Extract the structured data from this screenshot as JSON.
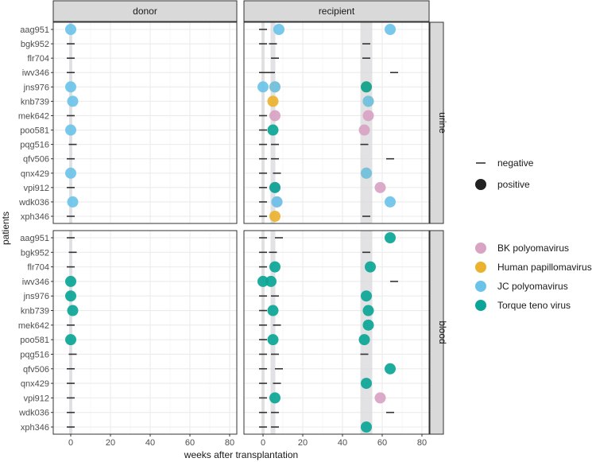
{
  "chart_data": {
    "type": "scatter",
    "xlabel": "weeks after transplantation",
    "ylabel": "patients",
    "xlim": [
      -9,
      84
    ],
    "xticks": [
      0,
      20,
      40,
      60,
      80
    ],
    "col_strips": [
      "donor",
      "recipient"
    ],
    "row_strips": [
      "urine",
      "blood"
    ],
    "patients": [
      "aag951",
      "bgk952",
      "flr704",
      "iwv346",
      "jns976",
      "knb739",
      "mek642",
      "poo581",
      "pqg516",
      "qfv506",
      "qnx429",
      "vpi912",
      "wdk036",
      "xph346"
    ],
    "shaded_bands": {
      "donor": [
        [
          -0.8,
          0.8
        ]
      ],
      "recipient": [
        [
          -0.8,
          0.8
        ],
        [
          3.8,
          6.2
        ],
        [
          49,
          55
        ]
      ]
    },
    "legend_status": {
      "title": "",
      "entries": [
        "negative",
        "positive"
      ]
    },
    "legend_virus": {
      "entries": [
        "BK polyomavirus",
        "Human papillomavirus",
        "JC polyomavirus",
        "Torque teno virus"
      ],
      "colors": [
        "#d9a3c4",
        "#ebb22f",
        "#6cc3ea",
        "#0aa596"
      ]
    },
    "panels": [
      {
        "col": "donor",
        "row": "urine",
        "points": [
          [
            "aag951",
            0,
            "JC polyomavirus"
          ],
          [
            "bgk952",
            0,
            null
          ],
          [
            "flr704",
            0,
            null
          ],
          [
            "iwv346",
            0,
            null
          ],
          [
            "jns976",
            0,
            "JC polyomavirus"
          ],
          [
            "knb739",
            1,
            "JC polyomavirus"
          ],
          [
            "mek642",
            0,
            null
          ],
          [
            "poo581",
            0,
            "JC polyomavirus"
          ],
          [
            "pqg516",
            1,
            null
          ],
          [
            "qfv506",
            0,
            null
          ],
          [
            "qnx429",
            0,
            "JC polyomavirus"
          ],
          [
            "vpi912",
            0,
            null
          ],
          [
            "wdk036",
            1,
            "JC polyomavirus"
          ],
          [
            "xph346",
            0,
            null
          ]
        ]
      },
      {
        "col": "recipient",
        "row": "urine",
        "points": [
          [
            "aag951",
            0,
            null
          ],
          [
            "aag951",
            8,
            "JC polyomavirus"
          ],
          [
            "aag951",
            64,
            "JC polyomavirus"
          ],
          [
            "bgk952",
            0,
            null
          ],
          [
            "bgk952",
            5,
            null
          ],
          [
            "bgk952",
            52,
            null
          ],
          [
            "flr704",
            6,
            null
          ],
          [
            "flr704",
            52,
            null
          ],
          [
            "iwv346",
            0,
            null
          ],
          [
            "iwv346",
            4,
            null
          ],
          [
            "iwv346",
            66,
            null
          ],
          [
            "jns976",
            0,
            "JC polyomavirus"
          ],
          [
            "jns976",
            6,
            "Human papillomavirus"
          ],
          [
            "jns976",
            6,
            "JC polyomavirus"
          ],
          [
            "jns976",
            52,
            "Human papillomavirus"
          ],
          [
            "jns976",
            52,
            "Torque teno virus"
          ],
          [
            "knb739",
            5,
            "Human papillomavirus"
          ],
          [
            "knb739",
            53,
            "Human papillomavirus"
          ],
          [
            "knb739",
            53,
            "JC polyomavirus"
          ],
          [
            "mek642",
            0,
            null
          ],
          [
            "mek642",
            6,
            "BK polyomavirus"
          ],
          [
            "mek642",
            53,
            "BK polyomavirus"
          ],
          [
            "poo581",
            0,
            null
          ],
          [
            "poo581",
            5,
            "Torque teno virus"
          ],
          [
            "poo581",
            51,
            "BK polyomavirus"
          ],
          [
            "pqg516",
            0,
            null
          ],
          [
            "pqg516",
            6,
            null
          ],
          [
            "pqg516",
            51,
            null
          ],
          [
            "qfv506",
            0,
            null
          ],
          [
            "qfv506",
            6,
            null
          ],
          [
            "qfv506",
            64,
            null
          ],
          [
            "qnx429",
            0,
            null
          ],
          [
            "qnx429",
            7,
            null
          ],
          [
            "qnx429",
            52,
            "Human papillomavirus"
          ],
          [
            "qnx429",
            52,
            "JC polyomavirus"
          ],
          [
            "vpi912",
            0,
            null
          ],
          [
            "vpi912",
            6,
            "BK polyomavirus"
          ],
          [
            "vpi912",
            6,
            "Torque teno virus"
          ],
          [
            "vpi912",
            59,
            "BK polyomavirus"
          ],
          [
            "wdk036",
            0,
            null
          ],
          [
            "wdk036",
            7,
            "BK polyomavirus"
          ],
          [
            "wdk036",
            7,
            "JC polyomavirus"
          ],
          [
            "wdk036",
            64,
            "JC polyomavirus"
          ],
          [
            "xph346",
            0,
            null
          ],
          [
            "xph346",
            6,
            "Human papillomavirus"
          ],
          [
            "xph346",
            52,
            null
          ]
        ]
      },
      {
        "col": "donor",
        "row": "blood",
        "points": [
          [
            "aag951",
            0,
            null
          ],
          [
            "bgk952",
            1,
            null
          ],
          [
            "flr704",
            0,
            null
          ],
          [
            "iwv346",
            0,
            "Torque teno virus"
          ],
          [
            "jns976",
            0,
            "Torque teno virus"
          ],
          [
            "knb739",
            1,
            "Torque teno virus"
          ],
          [
            "mek642",
            0,
            null
          ],
          [
            "poo581",
            0,
            "Torque teno virus"
          ],
          [
            "pqg516",
            1,
            null
          ],
          [
            "qfv506",
            0,
            null
          ],
          [
            "qnx429",
            0,
            null
          ],
          [
            "vpi912",
            0,
            null
          ],
          [
            "wdk036",
            0,
            null
          ],
          [
            "xph346",
            0,
            null
          ]
        ]
      },
      {
        "col": "recipient",
        "row": "blood",
        "points": [
          [
            "aag951",
            0,
            null
          ],
          [
            "aag951",
            8,
            null
          ],
          [
            "aag951",
            64,
            "Torque teno virus"
          ],
          [
            "bgk952",
            0,
            null
          ],
          [
            "bgk952",
            5,
            null
          ],
          [
            "bgk952",
            52,
            null
          ],
          [
            "flr704",
            0,
            null
          ],
          [
            "flr704",
            6,
            "Torque teno virus"
          ],
          [
            "flr704",
            54,
            "Torque teno virus"
          ],
          [
            "iwv346",
            0,
            "Torque teno virus"
          ],
          [
            "iwv346",
            4,
            "Torque teno virus"
          ],
          [
            "iwv346",
            66,
            null
          ],
          [
            "jns976",
            0,
            null
          ],
          [
            "jns976",
            6,
            null
          ],
          [
            "jns976",
            52,
            "Torque teno virus"
          ],
          [
            "knb739",
            0,
            null
          ],
          [
            "knb739",
            5,
            "Torque teno virus"
          ],
          [
            "knb739",
            53,
            "Torque teno virus"
          ],
          [
            "mek642",
            0,
            null
          ],
          [
            "mek642",
            7,
            null
          ],
          [
            "mek642",
            53,
            "Torque teno virus"
          ],
          [
            "poo581",
            0,
            null
          ],
          [
            "poo581",
            5,
            "Torque teno virus"
          ],
          [
            "poo581",
            51,
            "Torque teno virus"
          ],
          [
            "pqg516",
            0,
            null
          ],
          [
            "pqg516",
            6,
            null
          ],
          [
            "pqg516",
            51,
            null
          ],
          [
            "qfv506",
            0,
            null
          ],
          [
            "qfv506",
            8,
            null
          ],
          [
            "qfv506",
            64,
            "Torque teno virus"
          ],
          [
            "qnx429",
            0,
            null
          ],
          [
            "qnx429",
            7,
            null
          ],
          [
            "qnx429",
            52,
            "Torque teno virus"
          ],
          [
            "vpi912",
            0,
            null
          ],
          [
            "vpi912",
            6,
            "Torque teno virus"
          ],
          [
            "vpi912",
            59,
            "BK polyomavirus"
          ],
          [
            "wdk036",
            0,
            null
          ],
          [
            "wdk036",
            6,
            null
          ],
          [
            "wdk036",
            64,
            null
          ],
          [
            "xph346",
            0,
            null
          ],
          [
            "xph346",
            6,
            null
          ],
          [
            "xph346",
            52,
            "Torque teno virus"
          ]
        ]
      }
    ]
  }
}
